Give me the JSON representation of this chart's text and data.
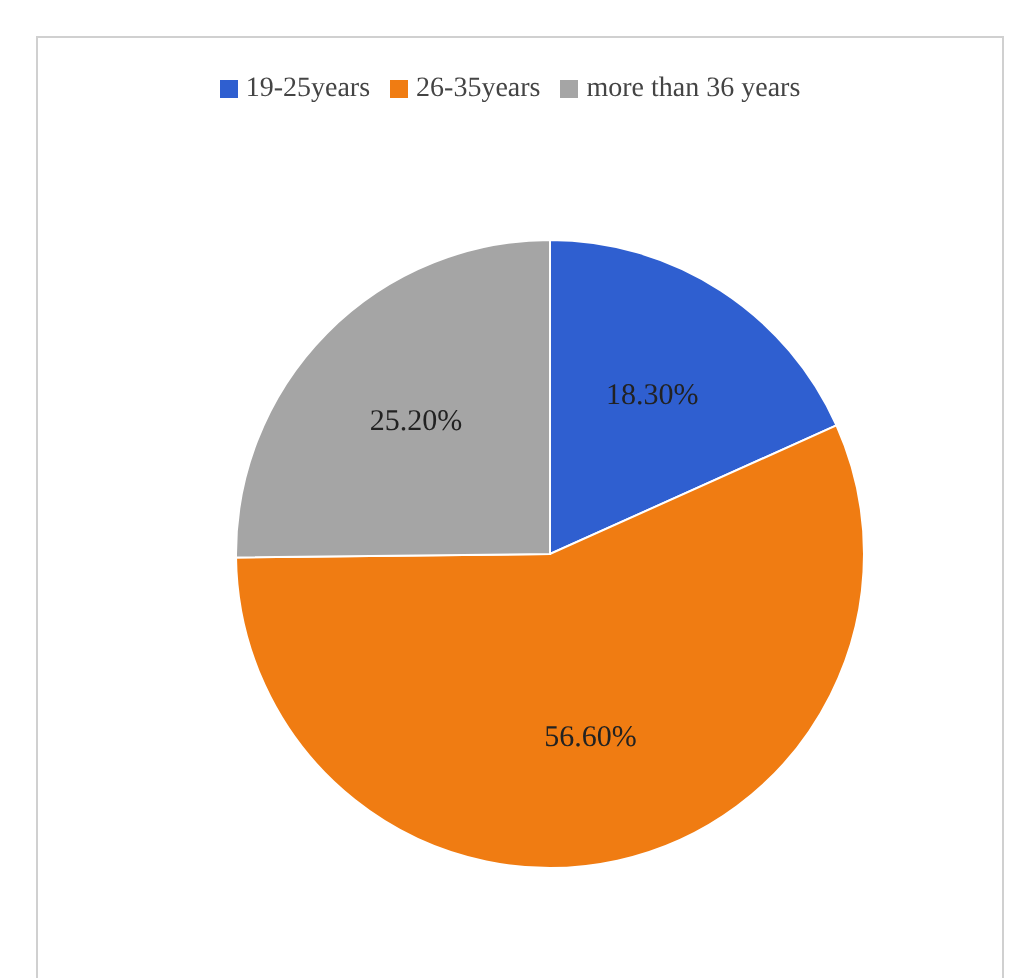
{
  "chart_data": {
    "type": "pie",
    "categories": [
      "19-25years",
      "26-35years",
      "more than 36 years"
    ],
    "values": [
      18.3,
      56.6,
      25.2
    ],
    "colors": [
      "#2f5fd0",
      "#f07c12",
      "#a5a5a5"
    ],
    "value_labels": [
      "18.30%",
      "56.60%",
      "25.20%"
    ],
    "legend": "top"
  }
}
